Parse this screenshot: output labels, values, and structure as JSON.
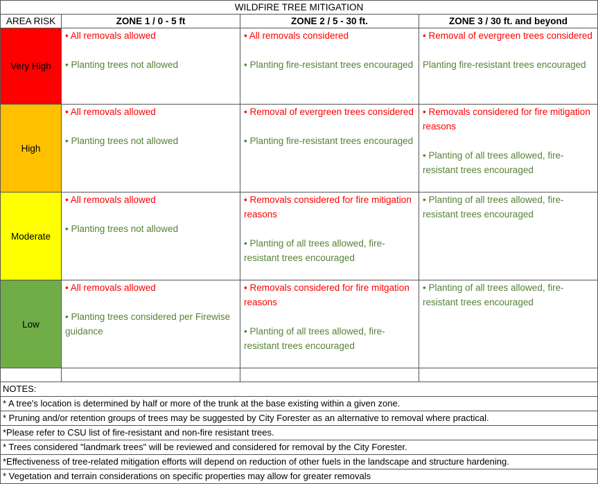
{
  "title": "WILDFIRE TREE MITIGATION",
  "header": [
    "AREA RISK",
    "ZONE 1 / 0 - 5 ft",
    "ZONE 2 / 5 - 30 ft.",
    "ZONE 3 /  30 ft. and beyond"
  ],
  "rows": [
    {
      "risk": "Very High",
      "color": "#ff0000",
      "cells": [
        [
          {
            "text": "• All removals allowed",
            "color": "#ff0000"
          },
          {
            "text": "• Planting trees not allowed",
            "color": "#548235"
          }
        ],
        [
          {
            "text": "• All removals considered",
            "color": "#ff0000"
          },
          {
            "text": "• Planting fire-resistant trees encouraged",
            "color": "#548235"
          }
        ],
        [
          {
            "text": "• Removal of evergreen trees considered",
            "color": "#ff0000"
          },
          {
            "text": "Planting fire-resistant trees encouraged",
            "color": "#548235"
          }
        ]
      ]
    },
    {
      "risk": "High",
      "color": "#ffc000",
      "cells": [
        [
          {
            "text": "• All removals allowed",
            "color": "#ff0000"
          },
          {
            "text": "• Planting trees not allowed",
            "color": "#548235"
          }
        ],
        [
          {
            "text": "• Removal of evergreen trees considered",
            "color": "#ff0000"
          },
          {
            "text": "• Planting fire-resistant trees encouraged",
            "color": "#548235"
          }
        ],
        [
          {
            "text": "• Removals considered for fire mitigation reasons",
            "color": "#ff0000"
          },
          {
            "text": "• Planting of all  trees allowed, fire-resistant trees encouraged",
            "color": "#548235"
          }
        ]
      ]
    },
    {
      "risk": "Moderate",
      "color": "#ffff00",
      "cells": [
        [
          {
            "text": "• All removals allowed",
            "color": "#ff0000"
          },
          {
            "text": "• Planting trees not allowed",
            "color": "#548235"
          }
        ],
        [
          {
            "text": "• Removals considered for fire mitigation reasons",
            "color": "#ff0000"
          },
          {
            "text": "• Planting of all  trees allowed, fire-resistant trees encouraged",
            "color": "#548235"
          }
        ],
        [
          {
            "text": "• Planting of all  trees allowed, fire-resistant trees encouraged",
            "color": "#548235"
          }
        ]
      ]
    },
    {
      "risk": "Low",
      "color": "#70ad47",
      "cells": [
        [
          {
            "text": "• All removals allowed",
            "color": "#ff0000"
          },
          {
            "text": "• Planting trees considered per Firewise guidance",
            "color": "#548235"
          }
        ],
        [
          {
            "text": "• Removals considered for fire mitgation reasons",
            "color": "#ff0000"
          },
          {
            "text": "• Planting of all  trees allowed, fire-resistant trees encouraged",
            "color": "#548235"
          }
        ],
        [
          {
            "text": "• Planting of all  trees allowed, fire-resistant trees encouraged",
            "color": "#548235"
          }
        ]
      ]
    }
  ],
  "notes_title": "NOTES:",
  "notes": [
    "* A tree's location is determined by half or more of the trunk at the base existing within a given zone.",
    "* Pruning and/or retention groups of trees may be suggested by City Forester as an alternative to removal where practical.",
    "*Please refer to CSU list of fire-resistant and non-fire resistant trees.",
    "* Trees considered \"landmark trees\" will be reviewed and considered for removal by the City Forester.",
    "*Effectiveness of tree-related mitigation efforts will depend on reduction of other fuels in the landscape and structure hardening.",
    "* Vegetation and terrain considerations on specific properties may allow for greater removals"
  ]
}
